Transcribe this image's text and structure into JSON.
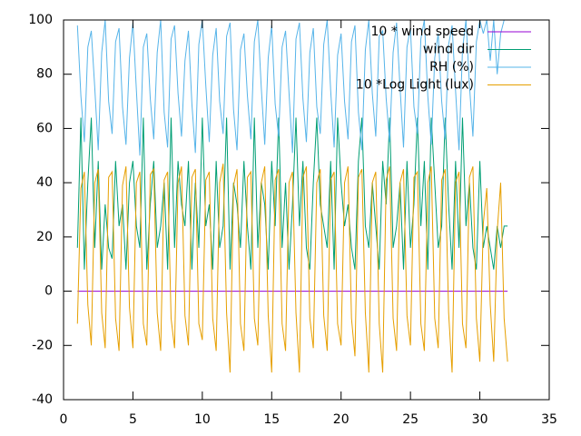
{
  "chart_data": {
    "type": "line",
    "x": [
      1,
      1.25,
      1.5,
      1.75,
      2,
      2.25,
      2.5,
      2.75,
      3,
      3.25,
      3.5,
      3.75,
      4,
      4.25,
      4.5,
      4.75,
      5,
      5.25,
      5.5,
      5.75,
      6,
      6.25,
      6.5,
      6.75,
      7,
      7.25,
      7.5,
      7.75,
      8,
      8.25,
      8.5,
      8.75,
      9,
      9.25,
      9.5,
      9.75,
      10,
      10.25,
      10.5,
      10.75,
      11,
      11.25,
      11.5,
      11.75,
      12,
      12.25,
      12.5,
      12.75,
      13,
      13.25,
      13.5,
      13.75,
      14,
      14.25,
      14.5,
      14.75,
      15,
      15.25,
      15.5,
      15.75,
      16,
      16.25,
      16.5,
      16.75,
      17,
      17.25,
      17.5,
      17.75,
      18,
      18.25,
      18.5,
      18.75,
      19,
      19.25,
      19.5,
      19.75,
      20,
      20.25,
      20.5,
      20.75,
      21,
      21.25,
      21.5,
      21.75,
      22,
      22.25,
      22.5,
      22.75,
      23,
      23.25,
      23.5,
      23.75,
      24,
      24.25,
      24.5,
      24.75,
      25,
      25.25,
      25.5,
      25.75,
      26,
      26.25,
      26.5,
      26.75,
      27,
      27.25,
      27.5,
      27.75,
      28,
      28.25,
      28.5,
      28.75,
      29,
      29.25,
      29.5,
      29.75,
      30,
      30.25,
      30.5,
      30.75,
      31,
      31.25,
      31.5,
      31.75,
      32
    ],
    "series": [
      {
        "name": "10 * wind speed",
        "color": "#9400d3",
        "values": [
          0,
          0,
          0,
          0,
          0,
          0,
          0,
          0,
          0,
          0,
          0,
          0,
          0,
          0,
          0,
          0,
          0,
          0,
          0,
          0,
          0,
          0,
          0,
          0,
          0,
          0,
          0,
          0,
          0,
          0,
          0,
          0,
          0,
          0,
          0,
          0,
          0,
          0,
          0,
          0,
          0,
          0,
          0,
          0,
          0,
          0,
          0,
          0,
          0,
          0,
          0,
          0,
          0,
          0,
          0,
          0,
          0,
          0,
          0,
          0,
          0,
          0,
          0,
          0,
          0,
          0,
          0,
          0,
          0,
          0,
          0,
          0,
          0,
          0,
          0,
          0,
          0,
          0,
          0,
          0,
          0,
          0,
          0,
          0,
          0,
          0,
          0,
          0,
          0,
          0,
          0,
          0,
          0,
          0,
          0,
          0,
          0,
          0,
          0,
          0,
          0,
          0,
          0,
          0,
          0,
          0,
          0,
          0,
          0,
          0,
          0,
          0,
          0,
          0,
          0,
          0,
          0,
          0,
          0,
          0,
          0,
          0,
          0,
          0,
          0
        ]
      },
      {
        "name": "wind dir",
        "color": "#009e73",
        "values": [
          16,
          64,
          8,
          40,
          64,
          16,
          48,
          8,
          32,
          16,
          12,
          48,
          24,
          32,
          8,
          40,
          48,
          24,
          16,
          64,
          8,
          32,
          48,
          16,
          24,
          40,
          8,
          64,
          16,
          48,
          32,
          24,
          48,
          8,
          40,
          16,
          64,
          24,
          32,
          8,
          48,
          16,
          24,
          64,
          8,
          40,
          32,
          16,
          48,
          24,
          8,
          64,
          16,
          40,
          32,
          8,
          48,
          24,
          64,
          16,
          40,
          8,
          32,
          64,
          24,
          48,
          16,
          8,
          40,
          64,
          32,
          24,
          16,
          48,
          8,
          64,
          40,
          24,
          32,
          16,
          8,
          48,
          64,
          24,
          16,
          40,
          24,
          8,
          48,
          32,
          64,
          16,
          24,
          40,
          8,
          48,
          16,
          32,
          64,
          24,
          48,
          8,
          64,
          40,
          16,
          24,
          64,
          32,
          8,
          48,
          16,
          64,
          24,
          40,
          16,
          8,
          48,
          16,
          24,
          16,
          8,
          24,
          16,
          24,
          24
        ]
      },
      {
        "name": "RH (%)",
        "color": "#56b4e9",
        "values": [
          98,
          72,
          55,
          90,
          96,
          75,
          52,
          88,
          100,
          70,
          58,
          92,
          97,
          68,
          54,
          86,
          99,
          74,
          50,
          90,
          95,
          71,
          56,
          88,
          100,
          66,
          53,
          93,
          98,
          73,
          57,
          85,
          96,
          69,
          51,
          91,
          100,
          76,
          55,
          87,
          97,
          70,
          58,
          94,
          99,
          67,
          52,
          89,
          95,
          72,
          56,
          92,
          100,
          75,
          54,
          86,
          98,
          69,
          57,
          90,
          96,
          73,
          51,
          93,
          99,
          71,
          55,
          88,
          97,
          68,
          58,
          91,
          100,
          74,
          53,
          87,
          95,
          70,
          56,
          92,
          98,
          66,
          52,
          89,
          100,
          73,
          57,
          94,
          96,
          71,
          55,
          88,
          99,
          75,
          53,
          90,
          97,
          68,
          58,
          93,
          100,
          72,
          54,
          86,
          95,
          70,
          56,
          91,
          98,
          74,
          52,
          89,
          100,
          76,
          57,
          92,
          100,
          95,
          100,
          85,
          100,
          80,
          95,
          100,
          100
        ]
      },
      {
        "name": "10 *Log Light (lux)",
        "color": "#e69f00",
        "values": [
          -12,
          38,
          44,
          -5,
          -20,
          40,
          45,
          -8,
          -21,
          42,
          44,
          -10,
          -22,
          39,
          46,
          -6,
          -21,
          40,
          44,
          -12,
          -20,
          43,
          45,
          -8,
          -22,
          41,
          44,
          -10,
          -21,
          40,
          46,
          -9,
          -20,
          42,
          45,
          -12,
          -18,
          41,
          44,
          -10,
          -22,
          40,
          47,
          -8,
          -30,
          39,
          45,
          -12,
          -22,
          42,
          44,
          -10,
          -20,
          40,
          46,
          -9,
          -30,
          41,
          45,
          -12,
          -22,
          40,
          44,
          -8,
          -30,
          42,
          46,
          -10,
          -21,
          40,
          45,
          -9,
          -22,
          41,
          44,
          -12,
          -20,
          40,
          46,
          -10,
          -24,
          42,
          45,
          -8,
          -30,
          40,
          44,
          -12,
          -30,
          41,
          46,
          -10,
          -22,
          40,
          45,
          -9,
          -20,
          42,
          44,
          -12,
          -22,
          40,
          46,
          -10,
          -21,
          41,
          45,
          -8,
          -30,
          40,
          44,
          -12,
          -21,
          42,
          46,
          -10,
          -26,
          25,
          38,
          -5,
          -26,
          22,
          40,
          -10,
          -26
        ]
      }
    ],
    "xlim": [
      0,
      35
    ],
    "xticks": [
      0,
      5,
      10,
      15,
      20,
      25,
      30,
      35
    ],
    "ylim": [
      -40,
      100
    ],
    "yticks": [
      -40,
      -20,
      0,
      20,
      40,
      60,
      80,
      100
    ],
    "legend": "top-right"
  }
}
